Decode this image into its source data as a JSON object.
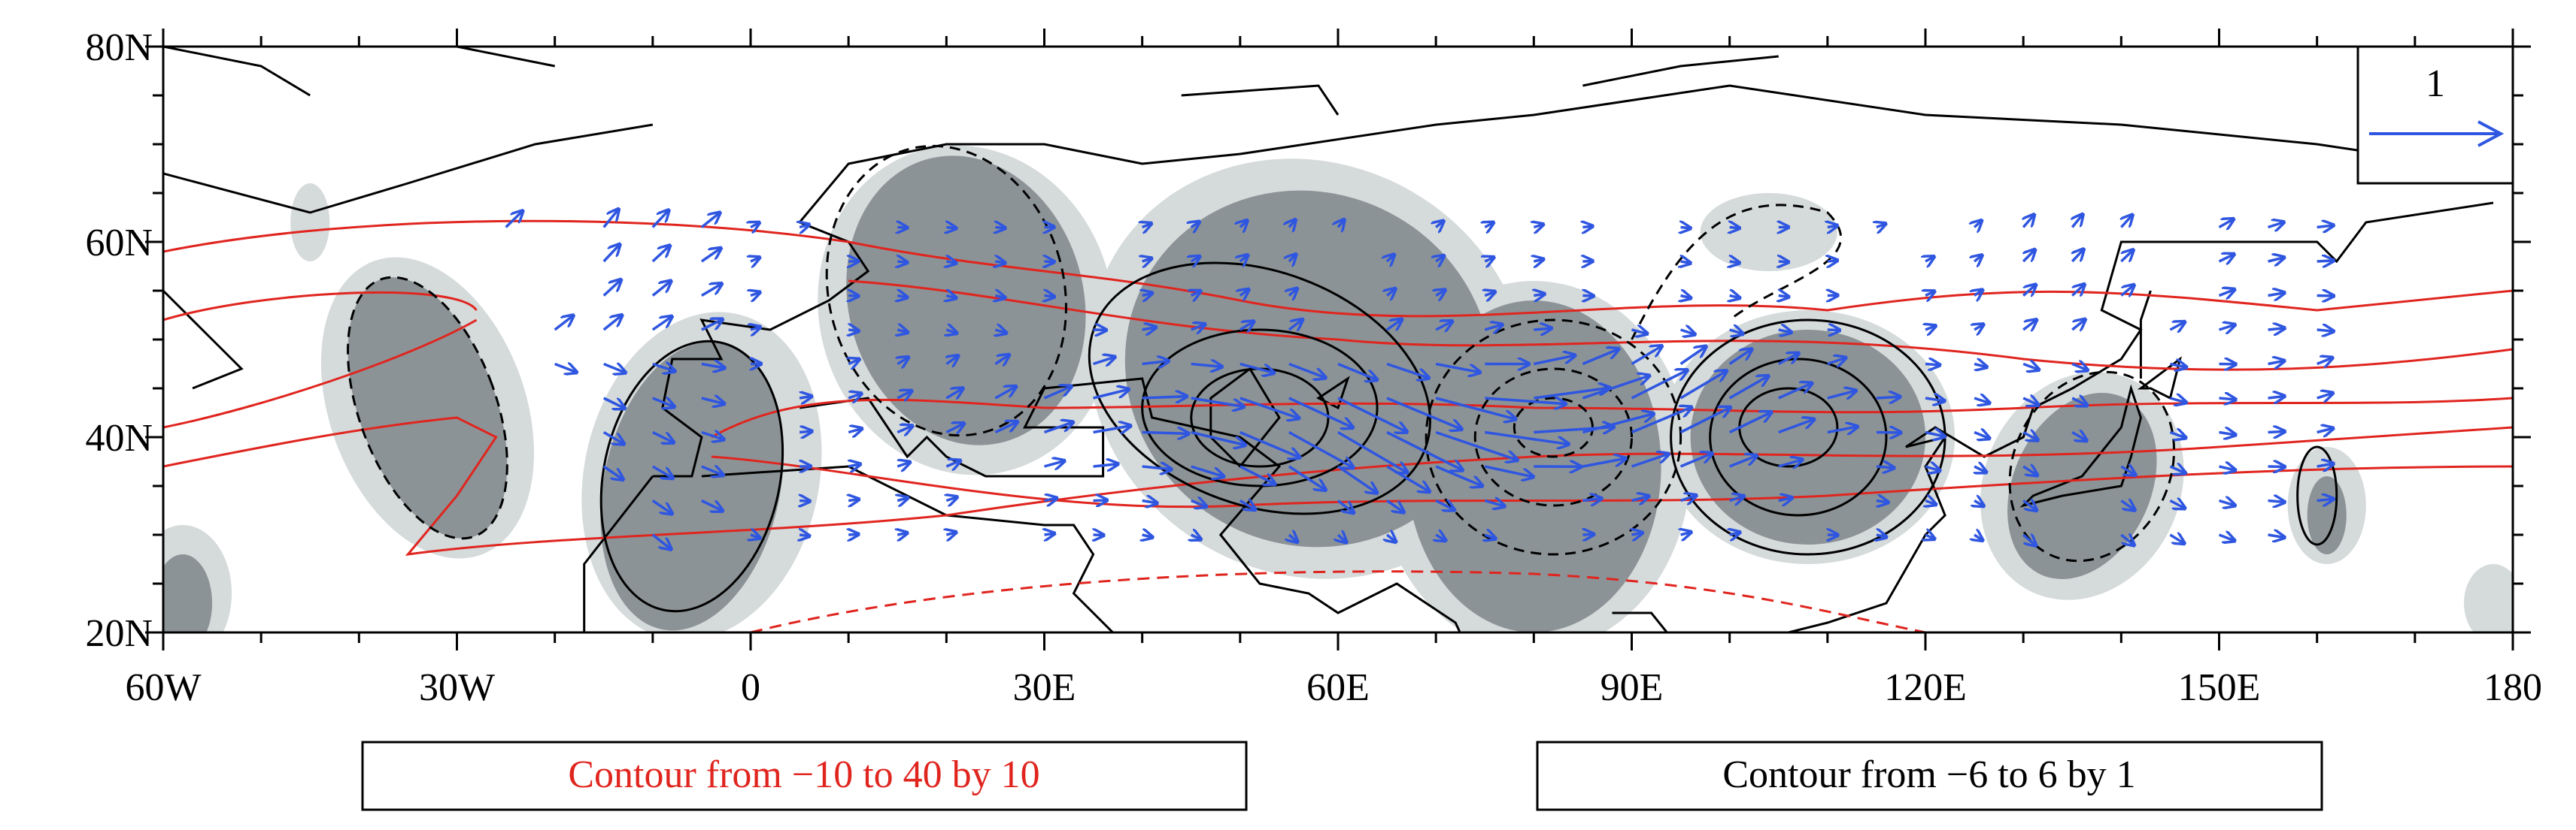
{
  "map": {
    "x_axis": {
      "labels": [
        "60W",
        "30W",
        "0",
        "30E",
        "60E",
        "90E",
        "120E",
        "150E",
        "180"
      ]
    },
    "y_axis": {
      "labels": [
        "20N",
        "40N",
        "60N",
        "80N"
      ]
    },
    "reference_vector": {
      "label": "1"
    },
    "legend": {
      "red_contour": "Contour from −10 to 40 by 10",
      "black_contour": "Contour from −6 to 6 by 1"
    }
  }
}
